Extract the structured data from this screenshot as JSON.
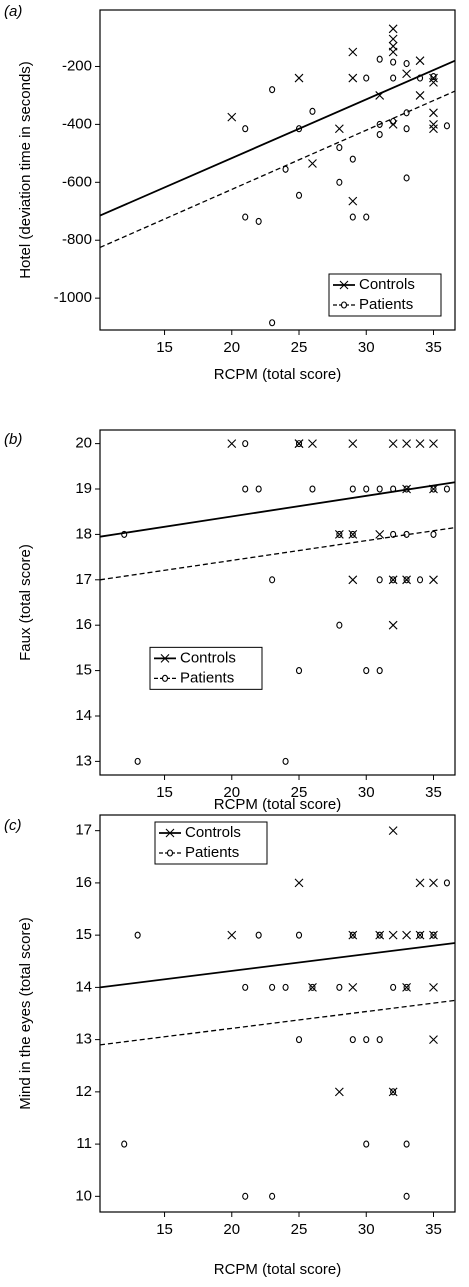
{
  "chart_data": [
    {
      "type": "scatter",
      "label": "(a)",
      "xlabel": "RCPM (total score)",
      "ylabel": "Hotel (deviation time in seconds)",
      "xlim": [
        10.2,
        36.6
      ],
      "ylim": [
        -1110,
        -5
      ],
      "xticks": [
        15,
        20,
        25,
        30,
        35
      ],
      "yticks": [
        -1000,
        -800,
        -600,
        -400,
        -200
      ],
      "legend": "lower right",
      "series": [
        {
          "name": "Controls",
          "marker": "x",
          "color": "#000000",
          "line_style": "solid",
          "x": [
            20,
            25,
            26,
            28,
            29,
            29,
            29,
            31,
            32,
            32,
            32,
            32,
            32,
            33,
            34,
            34,
            35,
            35,
            35,
            35,
            35
          ],
          "values": [
            -375,
            -240,
            -535,
            -415,
            -150,
            -240,
            -665,
            -300,
            -70,
            -105,
            -130,
            -150,
            -400,
            -225,
            -180,
            -300,
            -240,
            -255,
            -360,
            -400,
            -415
          ],
          "fit_x": [
            10.2,
            36.6
          ],
          "fit_values": [
            -715,
            -180
          ]
        },
        {
          "name": "Patients",
          "marker": "o",
          "color": "#000000",
          "line_style": "dashed",
          "x": [
            21,
            21,
            22,
            23,
            23,
            24,
            25,
            25,
            26,
            28,
            28,
            29,
            29,
            30,
            30,
            31,
            31,
            31,
            32,
            32,
            32,
            33,
            33,
            33,
            33,
            34,
            35,
            36
          ],
          "values": [
            -415,
            -720,
            -735,
            -280,
            -1085,
            -555,
            -415,
            -645,
            -355,
            -480,
            -600,
            -520,
            -720,
            -240,
            -720,
            -175,
            -400,
            -435,
            -185,
            -240,
            -390,
            -190,
            -360,
            -415,
            -585,
            -240,
            -235,
            -405
          ],
          "fit_x": [
            10.2,
            36.6
          ],
          "fit_values": [
            -825,
            -285
          ]
        }
      ]
    },
    {
      "type": "scatter",
      "label": "(b)",
      "xlabel": "RCPM (total score)",
      "ylabel": "Faux (total score)",
      "xlim": [
        10.2,
        36.6
      ],
      "ylim": [
        12.7,
        20.3
      ],
      "xticks": [
        15,
        20,
        25,
        30,
        35
      ],
      "yticks": [
        13,
        14,
        15,
        16,
        17,
        18,
        19,
        20
      ],
      "legend": "center left",
      "series": [
        {
          "name": "Controls",
          "marker": "x",
          "color": "#000000",
          "line_style": "solid",
          "x": [
            20,
            25,
            25,
            26,
            28,
            29,
            29,
            29,
            31,
            32,
            32,
            32,
            33,
            33,
            33,
            34,
            35,
            35,
            35
          ],
          "values": [
            20,
            20,
            20,
            20,
            18,
            20,
            18,
            17,
            18,
            20,
            17,
            16,
            20,
            19,
            17,
            20,
            20,
            19,
            17
          ],
          "fit_x": [
            10.2,
            36.6
          ],
          "fit_values": [
            17.95,
            19.15
          ]
        },
        {
          "name": "Patients",
          "marker": "o",
          "color": "#000000",
          "line_style": "dashed",
          "x": [
            12,
            13,
            21,
            21,
            22,
            23,
            24,
            25,
            25,
            26,
            28,
            28,
            29,
            29,
            30,
            30,
            31,
            31,
            31,
            32,
            32,
            32,
            33,
            33,
            33,
            34,
            35,
            35,
            36
          ],
          "values": [
            18,
            13,
            20,
            19,
            19,
            17,
            13,
            20,
            15,
            19,
            16,
            18,
            19,
            18,
            19,
            15,
            19,
            17,
            15,
            19,
            18,
            17,
            19,
            18,
            17,
            17,
            18,
            19,
            19
          ],
          "fit_x": [
            10.2,
            36.6
          ],
          "fit_values": [
            17,
            18.15
          ]
        }
      ]
    },
    {
      "type": "scatter",
      "label": "(c)",
      "xlabel": "RCPM (total score)",
      "ylabel": "Mind in the eyes (total score)",
      "xlim": [
        10.2,
        36.6
      ],
      "ylim": [
        9.7,
        17.3
      ],
      "xticks": [
        15,
        20,
        25,
        30,
        35
      ],
      "yticks": [
        10,
        11,
        12,
        13,
        14,
        15,
        16,
        17
      ],
      "legend": "upper left",
      "series": [
        {
          "name": "Controls",
          "marker": "x",
          "color": "#000000",
          "line_style": "solid",
          "x": [
            20,
            25,
            26,
            28,
            29,
            29,
            31,
            32,
            32,
            32,
            33,
            33,
            34,
            34,
            35,
            35,
            35,
            35
          ],
          "values": [
            15,
            16,
            14,
            12,
            15,
            14,
            15,
            17,
            15,
            12,
            15,
            14,
            16,
            15,
            16,
            15,
            14,
            13
          ],
          "fit_x": [
            10.2,
            36.6
          ],
          "fit_values": [
            14,
            14.85
          ]
        },
        {
          "name": "Patients",
          "marker": "o",
          "color": "#000000",
          "line_style": "dashed",
          "x": [
            12,
            13,
            21,
            21,
            22,
            23,
            23,
            24,
            25,
            25,
            26,
            28,
            29,
            29,
            30,
            30,
            31,
            31,
            32,
            32,
            33,
            33,
            33,
            34,
            35,
            36
          ],
          "values": [
            11,
            15,
            14,
            10,
            15,
            14,
            10,
            14,
            15,
            13,
            14,
            14,
            15,
            13,
            13,
            11,
            15,
            13,
            14,
            12,
            14,
            11,
            10,
            15,
            15,
            16
          ],
          "fit_x": [
            10.2,
            36.6
          ],
          "fit_values": [
            12.9,
            13.75
          ]
        }
      ]
    }
  ]
}
